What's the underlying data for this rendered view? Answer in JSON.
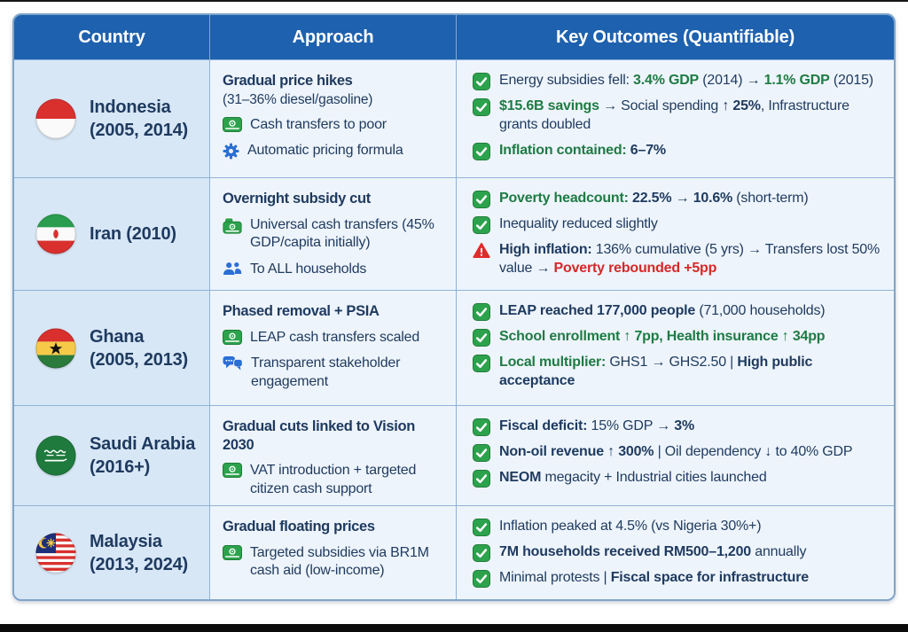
{
  "header": {
    "columns": [
      "Country",
      "Approach",
      "Key Outcomes (Quantifiable)"
    ]
  },
  "colors": {
    "header_bg": "#1e61ae",
    "country_cell_bg": "#d8e7f6",
    "cell_bg": "#eef4fb",
    "border": "#8fb3d9",
    "navy_text": "#1e3a5f",
    "green_text": "#1e7b44",
    "red_text": "#d62828",
    "check_green": "#2ca24c",
    "icon_blue": "#2b6fd4"
  },
  "rows": [
    {
      "country": {
        "flag": "indonesia-flag-icon",
        "name": "Indonesia",
        "years": "(2005, 2014)"
      },
      "approach": {
        "title": "Gradual price hikes",
        "subtitle": "(31–36% diesel/gasoline)",
        "items": [
          {
            "icon": "cash-icon",
            "text": "Cash transfers to poor"
          },
          {
            "icon": "gear-icon",
            "text": "Automatic pricing formula"
          }
        ]
      },
      "outcomes": [
        {
          "icon": "check-icon",
          "segments": [
            {
              "text": "Energy subsidies fell: ",
              "style": "navy"
            },
            {
              "text": "3.4% GDP",
              "style": "green-bold"
            },
            {
              "text": " (2014) → ",
              "style": "navy"
            },
            {
              "text": "1.1% GDP",
              "style": "green-bold"
            },
            {
              "text": " (2015)",
              "style": "navy"
            }
          ]
        },
        {
          "icon": "check-icon",
          "segments": [
            {
              "text": "$15.6B savings",
              "style": "green-bold"
            },
            {
              "text": " → Social spending ↑ ",
              "style": "navy"
            },
            {
              "text": "25%",
              "style": "navy-bold"
            },
            {
              "text": ", Infrastructure grants doubled",
              "style": "navy"
            }
          ]
        },
        {
          "icon": "check-icon",
          "segments": [
            {
              "text": "Inflation contained: ",
              "style": "green-bold"
            },
            {
              "text": "6–7%",
              "style": "navy-bold"
            }
          ]
        }
      ]
    },
    {
      "country": {
        "flag": "iran-flag-icon",
        "name": "Iran (2010)",
        "years": ""
      },
      "approach": {
        "title": "Overnight subsidy cut",
        "subtitle": "",
        "items": [
          {
            "icon": "money-bag-icon",
            "text": "Universal cash transfers (45% GDP/capita initially)"
          },
          {
            "icon": "people-icon",
            "text": "To ALL households"
          }
        ]
      },
      "outcomes": [
        {
          "icon": "check-icon",
          "segments": [
            {
              "text": "Poverty headcount: ",
              "style": "green-bold"
            },
            {
              "text": "22.5%",
              "style": "navy-bold"
            },
            {
              "text": " → ",
              "style": "navy"
            },
            {
              "text": "10.6%",
              "style": "navy-bold"
            },
            {
              "text": " (short-term)",
              "style": "navy"
            }
          ]
        },
        {
          "icon": "check-icon",
          "segments": [
            {
              "text": "Inequality reduced slightly",
              "style": "navy"
            }
          ]
        },
        {
          "icon": "warning-icon",
          "segments": [
            {
              "text": "High inflation: ",
              "style": "navy-bold"
            },
            {
              "text": "136% cumulative (5 yrs) → Transfers lost 50% value → ",
              "style": "navy"
            },
            {
              "text": "Poverty rebounded +5pp",
              "style": "red-bold"
            }
          ]
        }
      ]
    },
    {
      "country": {
        "flag": "ghana-flag-icon",
        "name": "Ghana",
        "years": "(2005, 2013)"
      },
      "approach": {
        "title": "Phased removal + PSIA",
        "subtitle": "",
        "items": [
          {
            "icon": "cash-icon",
            "text": "LEAP cash transfers scaled"
          },
          {
            "icon": "chat-icon",
            "text": "Transparent stakeholder engagement"
          }
        ]
      },
      "outcomes": [
        {
          "icon": "check-icon",
          "segments": [
            {
              "text": "LEAP reached 177,000 people",
              "style": "navy-bold"
            },
            {
              "text": " (71,000 households)",
              "style": "navy"
            }
          ]
        },
        {
          "icon": "check-icon",
          "segments": [
            {
              "text": "School enrollment ↑ 7pp, Health insurance ↑ 34pp",
              "style": "green-bold"
            }
          ]
        },
        {
          "icon": "check-icon",
          "segments": [
            {
              "text": "Local multiplier: ",
              "style": "green-bold"
            },
            {
              "text": "GHS1 → GHS2.50 | ",
              "style": "navy"
            },
            {
              "text": "High public acceptance",
              "style": "navy-bold"
            }
          ]
        }
      ]
    },
    {
      "country": {
        "flag": "saudi-arabia-flag-icon",
        "name": "Saudi Arabia",
        "years": "(2016+)"
      },
      "approach": {
        "title": "Gradual cuts linked to Vision 2030",
        "subtitle": "",
        "items": [
          {
            "icon": "cash-icon",
            "text": "VAT introduction + targeted citizen cash support"
          }
        ]
      },
      "outcomes": [
        {
          "icon": "check-icon",
          "segments": [
            {
              "text": "Fiscal deficit: ",
              "style": "navy-bold"
            },
            {
              "text": "15% GDP → ",
              "style": "navy"
            },
            {
              "text": "3%",
              "style": "navy-bold"
            }
          ]
        },
        {
          "icon": "check-icon",
          "segments": [
            {
              "text": "Non-oil revenue ↑ 300%",
              "style": "navy-bold"
            },
            {
              "text": " | Oil dependency ↓ to 40% GDP",
              "style": "navy"
            }
          ]
        },
        {
          "icon": "check-icon",
          "segments": [
            {
              "text": "NEOM",
              "style": "navy-bold"
            },
            {
              "text": " megacity + Industrial cities launched",
              "style": "navy"
            }
          ]
        }
      ]
    },
    {
      "country": {
        "flag": "malaysia-flag-icon",
        "name": "Malaysia",
        "years": "(2013, 2024)"
      },
      "approach": {
        "title": "Gradual floating prices",
        "subtitle": "",
        "items": [
          {
            "icon": "cash-icon",
            "text": "Targeted subsidies via BR1M cash aid (low-income)"
          }
        ]
      },
      "outcomes": [
        {
          "icon": "check-icon",
          "segments": [
            {
              "text": "Inflation peaked at 4.5% (vs Nigeria 30%+)",
              "style": "navy"
            }
          ]
        },
        {
          "icon": "check-icon",
          "segments": [
            {
              "text": "7M households received RM500–1,200",
              "style": "navy-bold"
            },
            {
              "text": " annually",
              "style": "navy"
            }
          ]
        },
        {
          "icon": "check-icon",
          "segments": [
            {
              "text": "Minimal protests | ",
              "style": "navy"
            },
            {
              "text": "Fiscal space for infrastructure",
              "style": "navy-bold"
            }
          ]
        }
      ]
    }
  ]
}
